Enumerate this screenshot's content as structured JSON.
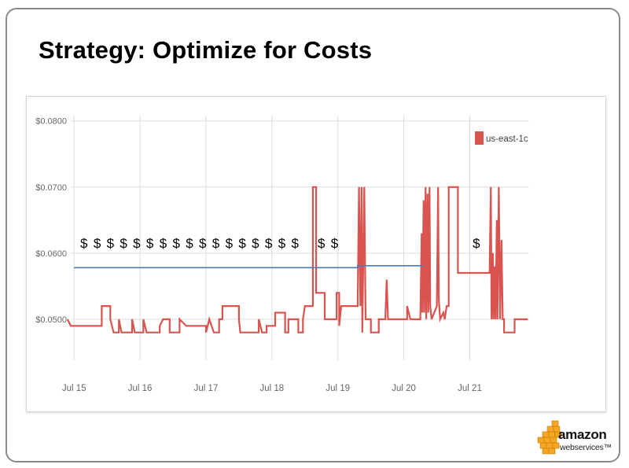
{
  "slide": {
    "title": "Strategy: Optimize for Costs"
  },
  "logo": {
    "wordmark": "amazon",
    "subtext": "webservices™"
  },
  "chart_data": {
    "type": "line",
    "title": "",
    "xlabel": "",
    "ylabel": "",
    "x_ticks": [
      "Jul 15",
      "Jul 16",
      "Jul 17",
      "Jul 18",
      "Jul 19",
      "Jul 20",
      "Jul 21"
    ],
    "y_ticks": [
      "$0.0800",
      "$0.0700",
      "$0.0600",
      "$0.0500"
    ],
    "xlim": [
      -0.05,
      6.9
    ],
    "ylim": [
      0.0438,
      0.0808
    ],
    "grid": true,
    "legend": {
      "position": "top-right",
      "entries": [
        "us-east-1c"
      ]
    },
    "colors": {
      "spot": "#d9534f",
      "bid": "#4a7ab8",
      "grid": "#dcdcdc",
      "tick_text": "#666666"
    },
    "series": [
      {
        "name": "us-east-1c",
        "color": "#d9534f",
        "points": [
          [
            -0.1,
            0.05
          ],
          [
            -0.05,
            0.049
          ],
          [
            0.42,
            0.049
          ],
          [
            0.42,
            0.052
          ],
          [
            0.55,
            0.052
          ],
          [
            0.55,
            0.05
          ],
          [
            0.6,
            0.048
          ],
          [
            0.68,
            0.048
          ],
          [
            0.68,
            0.05
          ],
          [
            0.72,
            0.048
          ],
          [
            0.88,
            0.048
          ],
          [
            0.88,
            0.05
          ],
          [
            0.92,
            0.048
          ],
          [
            1.05,
            0.048
          ],
          [
            1.05,
            0.05
          ],
          [
            1.1,
            0.048
          ],
          [
            1.3,
            0.048
          ],
          [
            1.3,
            0.049
          ],
          [
            1.35,
            0.05
          ],
          [
            1.45,
            0.05
          ],
          [
            1.45,
            0.048
          ],
          [
            1.6,
            0.048
          ],
          [
            1.6,
            0.05
          ],
          [
            1.7,
            0.049
          ],
          [
            2.0,
            0.049
          ],
          [
            2.0,
            0.048
          ],
          [
            2.05,
            0.05
          ],
          [
            2.12,
            0.048
          ],
          [
            2.2,
            0.048
          ],
          [
            2.2,
            0.05
          ],
          [
            2.25,
            0.05
          ],
          [
            2.25,
            0.052
          ],
          [
            2.5,
            0.052
          ],
          [
            2.5,
            0.05
          ],
          [
            2.52,
            0.048
          ],
          [
            2.8,
            0.048
          ],
          [
            2.8,
            0.05
          ],
          [
            2.85,
            0.048
          ],
          [
            2.92,
            0.048
          ],
          [
            2.92,
            0.049
          ],
          [
            3.05,
            0.049
          ],
          [
            3.05,
            0.051
          ],
          [
            3.2,
            0.051
          ],
          [
            3.2,
            0.048
          ],
          [
            3.25,
            0.048
          ],
          [
            3.25,
            0.05
          ],
          [
            3.4,
            0.05
          ],
          [
            3.4,
            0.048
          ],
          [
            3.47,
            0.048
          ],
          [
            3.47,
            0.05
          ],
          [
            3.5,
            0.052
          ],
          [
            3.62,
            0.052
          ],
          [
            3.62,
            0.07
          ],
          [
            3.67,
            0.07
          ],
          [
            3.67,
            0.054
          ],
          [
            3.8,
            0.054
          ],
          [
            3.8,
            0.05
          ],
          [
            3.98,
            0.05
          ],
          [
            3.98,
            0.054
          ],
          [
            4.02,
            0.054
          ],
          [
            4.02,
            0.049
          ],
          [
            4.05,
            0.052
          ],
          [
            4.3,
            0.052
          ],
          [
            4.32,
            0.07
          ],
          [
            4.34,
            0.052
          ],
          [
            4.36,
            0.07
          ],
          [
            4.37,
            0.048
          ],
          [
            4.4,
            0.07
          ],
          [
            4.42,
            0.05
          ],
          [
            4.5,
            0.05
          ],
          [
            4.5,
            0.048
          ],
          [
            4.62,
            0.048
          ],
          [
            4.62,
            0.05
          ],
          [
            4.72,
            0.05
          ],
          [
            4.74,
            0.056
          ],
          [
            4.76,
            0.05
          ],
          [
            5.0,
            0.05
          ],
          [
            5.05,
            0.05
          ],
          [
            5.05,
            0.052
          ],
          [
            5.1,
            0.05
          ],
          [
            5.15,
            0.05
          ],
          [
            5.2,
            0.05
          ],
          [
            5.25,
            0.05
          ],
          [
            5.27,
            0.063
          ],
          [
            5.28,
            0.051
          ],
          [
            5.3,
            0.068
          ],
          [
            5.31,
            0.051
          ],
          [
            5.33,
            0.07
          ],
          [
            5.34,
            0.05
          ],
          [
            5.36,
            0.069
          ],
          [
            5.37,
            0.051
          ],
          [
            5.39,
            0.07
          ],
          [
            5.4,
            0.052
          ],
          [
            5.42,
            0.05
          ],
          [
            5.5,
            0.052
          ],
          [
            5.52,
            0.07
          ],
          [
            5.53,
            0.053
          ],
          [
            5.55,
            0.05
          ],
          [
            5.6,
            0.051
          ],
          [
            5.62,
            0.05
          ],
          [
            5.65,
            0.052
          ],
          [
            5.68,
            0.052
          ],
          [
            5.68,
            0.07
          ],
          [
            5.82,
            0.07
          ],
          [
            5.82,
            0.057
          ],
          [
            6.3,
            0.057
          ],
          [
            6.32,
            0.07
          ],
          [
            6.33,
            0.05
          ],
          [
            6.35,
            0.06
          ],
          [
            6.36,
            0.05
          ],
          [
            6.38,
            0.058
          ],
          [
            6.39,
            0.05
          ],
          [
            6.41,
            0.065
          ],
          [
            6.42,
            0.05
          ],
          [
            6.44,
            0.07
          ],
          [
            6.46,
            0.05
          ],
          [
            6.48,
            0.062
          ],
          [
            6.5,
            0.05
          ],
          [
            6.52,
            0.05
          ],
          [
            6.52,
            0.048
          ],
          [
            6.68,
            0.048
          ],
          [
            6.68,
            0.05
          ],
          [
            6.88,
            0.05
          ]
        ]
      },
      {
        "name": "",
        "color": "#4a7ab8",
        "points": [
          [
            0.0,
            0.0578
          ],
          [
            4.3,
            0.0578
          ],
          [
            4.3,
            0.0581
          ],
          [
            5.3,
            0.0581
          ]
        ]
      }
    ],
    "annotations": [
      {
        "text": "$",
        "x": 0.15,
        "y": 0.0615
      },
      {
        "text": "$",
        "x": 0.35,
        "y": 0.0615
      },
      {
        "text": "$",
        "x": 0.55,
        "y": 0.0615
      },
      {
        "text": "$",
        "x": 0.75,
        "y": 0.0615
      },
      {
        "text": "$",
        "x": 0.95,
        "y": 0.0615
      },
      {
        "text": "$",
        "x": 1.15,
        "y": 0.0615
      },
      {
        "text": "$",
        "x": 1.35,
        "y": 0.0615
      },
      {
        "text": "$",
        "x": 1.55,
        "y": 0.0615
      },
      {
        "text": "$",
        "x": 1.75,
        "y": 0.0615
      },
      {
        "text": "$",
        "x": 1.95,
        "y": 0.0615
      },
      {
        "text": "$",
        "x": 2.15,
        "y": 0.0615
      },
      {
        "text": "$",
        "x": 2.35,
        "y": 0.0615
      },
      {
        "text": "$",
        "x": 2.55,
        "y": 0.0615
      },
      {
        "text": "$",
        "x": 2.75,
        "y": 0.0615
      },
      {
        "text": "$",
        "x": 2.95,
        "y": 0.0615
      },
      {
        "text": "$",
        "x": 3.15,
        "y": 0.0615
      },
      {
        "text": "$",
        "x": 3.35,
        "y": 0.0615
      },
      {
        "text": "$",
        "x": 3.75,
        "y": 0.0615
      },
      {
        "text": "$",
        "x": 3.95,
        "y": 0.0615
      },
      {
        "text": "$",
        "x": 6.1,
        "y": 0.0615
      }
    ]
  }
}
